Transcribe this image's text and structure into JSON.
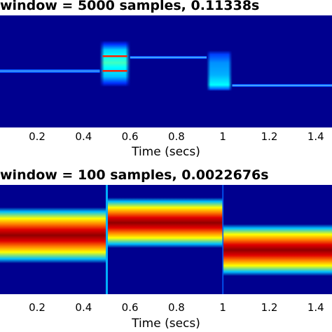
{
  "chart_data": [
    {
      "type": "heatmap",
      "title": "window = 5000 samples, 0.11338s",
      "xlabel": "Time (secs)",
      "ylabel": "",
      "xlim": [
        0.04,
        1.47
      ],
      "xticks": [
        "0.2",
        "0.4",
        "0.6",
        "0.8",
        "1",
        "1.2",
        "1.4"
      ],
      "tick_values": [
        0.2,
        0.4,
        0.6,
        0.8,
        1.0,
        1.2,
        1.4
      ],
      "colormap": "jet",
      "colors": {
        "background": "#00008f",
        "line": "#2a6fff",
        "bright": "#00ffff",
        "peak": "#ff2000"
      }
    },
    {
      "type": "heatmap",
      "title": "window = 100 samples, 0.0022676s",
      "xlabel": "Time (secs)",
      "ylabel": "",
      "xlim": [
        0.04,
        1.47
      ],
      "xticks": [
        "0.2",
        "0.4",
        "0.6",
        "0.8",
        "1",
        "1.2",
        "1.4"
      ],
      "tick_values": [
        0.2,
        0.4,
        0.6,
        0.8,
        1.0,
        1.2,
        1.4
      ],
      "colormap": "jet",
      "colors": {
        "background": "#00008f",
        "band_red": "#c00000",
        "band_yellow": "#ffff00",
        "band_cyan": "#00e0ff"
      }
    }
  ]
}
